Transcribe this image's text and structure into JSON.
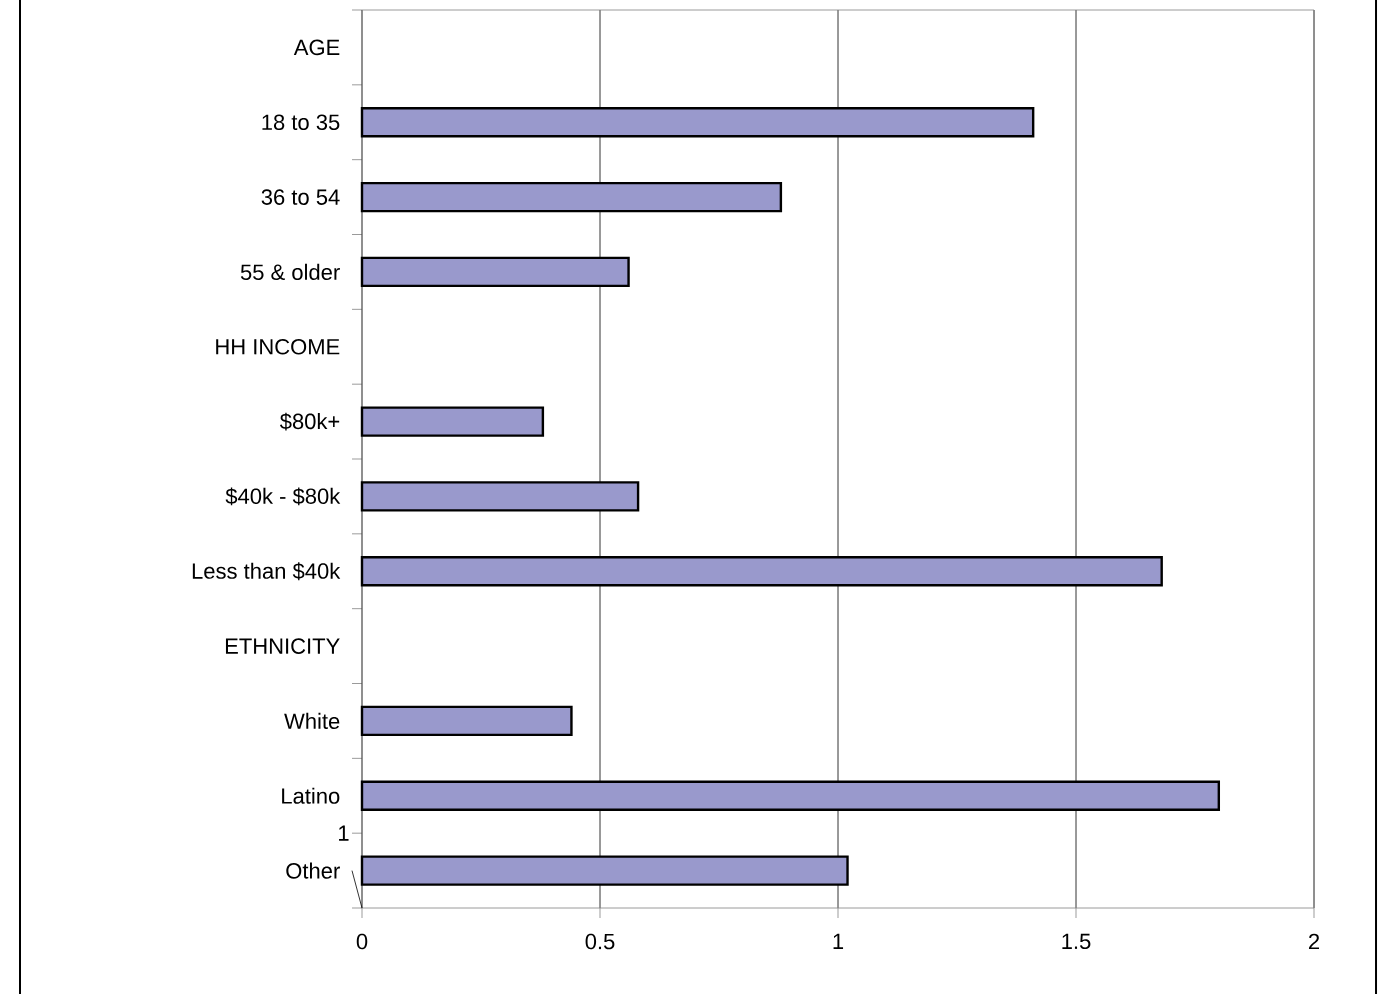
{
  "chart_data": {
    "type": "bar",
    "orientation": "horizontal",
    "categories": [
      "AGE",
      "18 to 35",
      "36 to 54",
      "55 & older",
      "HH INCOME",
      "$80k+",
      "$40k - $80k",
      "Less than $40k",
      "ETHNICITY",
      "White",
      "Latino",
      "Other"
    ],
    "values": [
      null,
      1.41,
      0.88,
      0.56,
      null,
      0.38,
      0.58,
      1.68,
      null,
      0.44,
      1.8,
      1.02
    ],
    "color": "#9999cc",
    "xlim": [
      0,
      2
    ],
    "xticks": [
      0,
      0.5,
      1,
      1.5,
      2
    ],
    "grid": "x",
    "annotations": [
      "1"
    ]
  }
}
